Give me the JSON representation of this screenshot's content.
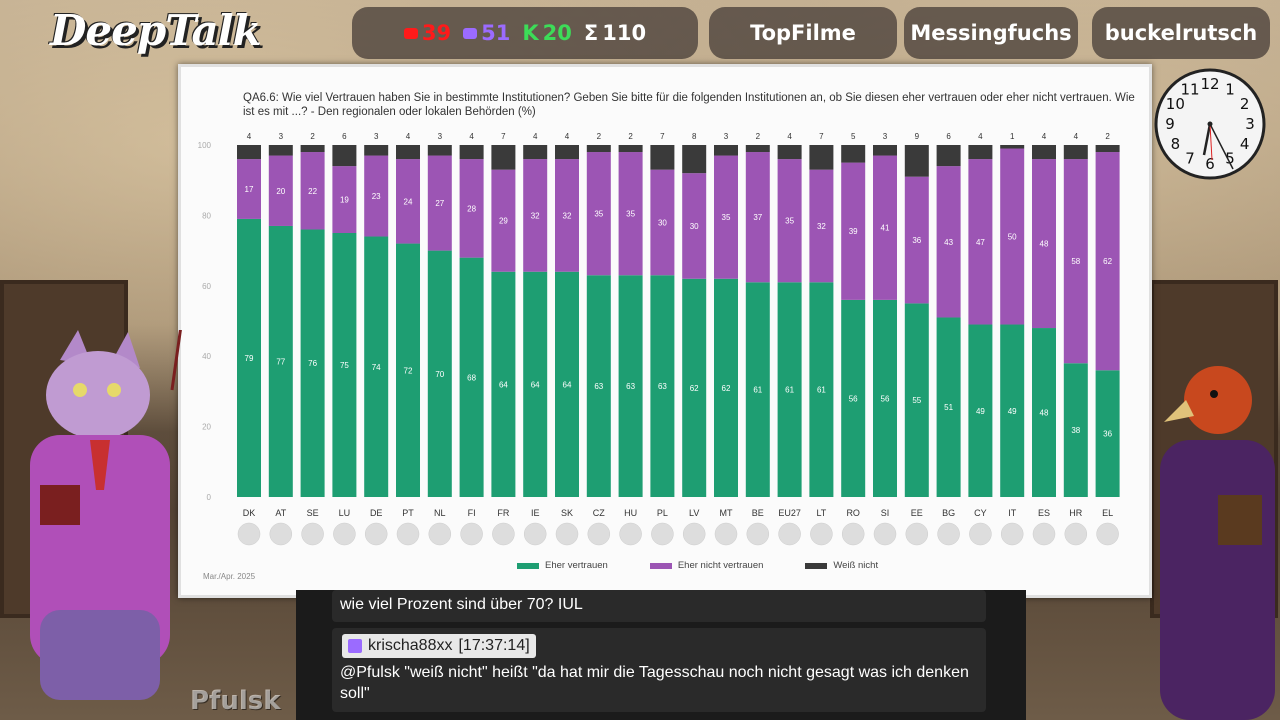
{
  "branding": {
    "logo": "DeepTalk",
    "watermark": "Pfulsk"
  },
  "stats": {
    "youtube": "39",
    "twitch": "51",
    "kick": "20",
    "sum_symbol": "Σ",
    "total": "110",
    "colors": {
      "youtube": "#ff1a1a",
      "twitch": "#9b6bff",
      "kick": "#3ddc58",
      "total": "#ffffff"
    }
  },
  "chips": [
    "TopFilme",
    "Messingfuchs",
    "buckelrutsch"
  ],
  "slide": {
    "title": "QA6.6: Wie viel Vertrauen haben Sie in bestimmte Institutionen? Geben Sie bitte für die folgenden Institutionen an, ob Sie diesen eher vertrauen oder eher nicht vertrauen. Wie ist es mit ...? - Den regionalen oder lokalen Behörden (%)",
    "date": "Mar./Apr. 2025"
  },
  "chart_data": {
    "type": "bar",
    "stacked": true,
    "title": "QA6.6: Wie viel Vertrauen haben Sie in bestimmte Institutionen? Geben Sie bitte für die folgenden Institutionen an, ob Sie diesen eher vertrauen oder eher nicht vertrauen. Wie ist es mit ...? - Den regionalen oder lokalen Behörden (%)",
    "categories": [
      "DK",
      "AT",
      "SE",
      "LU",
      "DE",
      "PT",
      "NL",
      "FI",
      "FR",
      "IE",
      "SK",
      "CZ",
      "HU",
      "PL",
      "LV",
      "MT",
      "BE",
      "EU27",
      "LT",
      "RO",
      "SI",
      "EE",
      "BG",
      "CY",
      "IT",
      "ES",
      "HR",
      "EL"
    ],
    "series": [
      {
        "name": "Eher vertrauen",
        "color": "#1e9e72",
        "values": [
          79,
          77,
          76,
          75,
          74,
          72,
          70,
          68,
          64,
          64,
          64,
          63,
          63,
          63,
          62,
          62,
          61,
          61,
          61,
          56,
          56,
          55,
          51,
          49,
          49,
          48,
          38,
          36
        ]
      },
      {
        "name": "Eher nicht vertrauen",
        "color": "#9c55b4",
        "values": [
          17,
          20,
          22,
          19,
          23,
          24,
          27,
          28,
          29,
          32,
          32,
          35,
          35,
          30,
          30,
          35,
          37,
          35,
          32,
          39,
          41,
          36,
          43,
          47,
          50,
          48,
          58,
          62
        ]
      },
      {
        "name": "Weiß nicht",
        "color": "#3a3a3a",
        "values": [
          4,
          3,
          2,
          6,
          3,
          4,
          3,
          4,
          7,
          4,
          4,
          2,
          2,
          7,
          8,
          3,
          2,
          4,
          7,
          5,
          3,
          9,
          6,
          4,
          1,
          4,
          4,
          2
        ]
      }
    ],
    "yticks": [
      "0",
      "20",
      "40",
      "60",
      "80",
      "100"
    ],
    "ylim": [
      0,
      100
    ],
    "legend_position": "bottom-center",
    "grid": false
  },
  "clock": {
    "numbers": [
      "12",
      "1",
      "2",
      "3",
      "4",
      "5",
      "6",
      "7",
      "8",
      "9",
      "10",
      "11"
    ],
    "time": "17:37"
  },
  "chat": {
    "prev_message": "wie viel Prozent sind über 70? IUL",
    "user": "krischa88xx",
    "timestamp": "[17:37:14]",
    "message": "@Pfulsk \"weiß nicht\" heißt \"da hat mir die Tagesschau noch nicht gesagt was ich denken soll\""
  }
}
